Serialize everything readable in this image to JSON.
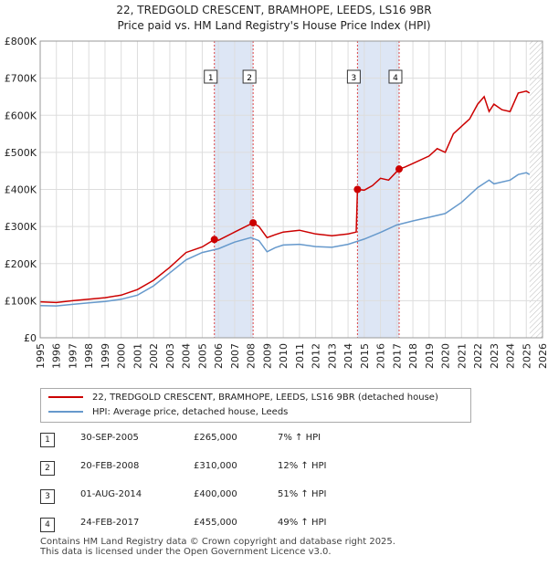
{
  "colors": {
    "property": "#cc0000",
    "hpi": "#6699cc",
    "band": "#dde6f5",
    "grid": "#dddddd"
  },
  "chart_data": {
    "type": "line",
    "title": "22, TREDGOLD CRESCENT, BRAMHOPE, LEEDS, LS16 9BR",
    "subtitle": "Price paid vs. HM Land Registry's House Price Index (HPI)",
    "xlim": [
      1995,
      2026
    ],
    "ylim": [
      0,
      800000
    ],
    "y_ticks": [
      {
        "value": 0,
        "label": "£0"
      },
      {
        "value": 100000,
        "label": "£100K"
      },
      {
        "value": 200000,
        "label": "£200K"
      },
      {
        "value": 300000,
        "label": "£300K"
      },
      {
        "value": 400000,
        "label": "£400K"
      },
      {
        "value": 500000,
        "label": "£500K"
      },
      {
        "value": 600000,
        "label": "£600K"
      },
      {
        "value": 700000,
        "label": "£700K"
      },
      {
        "value": 800000,
        "label": "£800K"
      }
    ],
    "x_ticks": [
      "1995",
      "1996",
      "1997",
      "1998",
      "1999",
      "2000",
      "2001",
      "2002",
      "2003",
      "2004",
      "2005",
      "2006",
      "2007",
      "2008",
      "2009",
      "2010",
      "2011",
      "2012",
      "2013",
      "2014",
      "2015",
      "2016",
      "2017",
      "2018",
      "2019",
      "2020",
      "2021",
      "2022",
      "2023",
      "2024",
      "2025",
      "2026"
    ],
    "shaded_periods": [
      [
        2005.75,
        2008.14
      ],
      [
        2014.58,
        2017.15
      ]
    ],
    "hatched_from": 2025.2,
    "series": [
      {
        "name": "22, TREDGOLD CRESCENT, BRAMHOPE, LEEDS, LS16 9BR (detached house)",
        "color": "#cc0000",
        "points": [
          [
            1995,
            97000
          ],
          [
            1996,
            95000
          ],
          [
            1997,
            100000
          ],
          [
            1998,
            104000
          ],
          [
            1999,
            108000
          ],
          [
            2000,
            115000
          ],
          [
            2001,
            130000
          ],
          [
            2002,
            155000
          ],
          [
            2003,
            190000
          ],
          [
            2004,
            230000
          ],
          [
            2005,
            245000
          ],
          [
            2005.75,
            265000
          ],
          [
            2006,
            263000
          ],
          [
            2007,
            285000
          ],
          [
            2008.14,
            310000
          ],
          [
            2008.5,
            300000
          ],
          [
            2009,
            270000
          ],
          [
            2009.5,
            278000
          ],
          [
            2010,
            285000
          ],
          [
            2011,
            290000
          ],
          [
            2012,
            280000
          ],
          [
            2013,
            275000
          ],
          [
            2014,
            280000
          ],
          [
            2014.5,
            285000
          ],
          [
            2014.58,
            400000
          ],
          [
            2015,
            398000
          ],
          [
            2015.5,
            410000
          ],
          [
            2016,
            430000
          ],
          [
            2016.5,
            425000
          ],
          [
            2017.15,
            455000
          ],
          [
            2017.5,
            460000
          ],
          [
            2018,
            470000
          ],
          [
            2019,
            490000
          ],
          [
            2019.5,
            510000
          ],
          [
            2020,
            500000
          ],
          [
            2020.5,
            550000
          ],
          [
            2021,
            570000
          ],
          [
            2021.5,
            590000
          ],
          [
            2022,
            630000
          ],
          [
            2022.4,
            650000
          ],
          [
            2022.7,
            610000
          ],
          [
            2023,
            630000
          ],
          [
            2023.5,
            615000
          ],
          [
            2024,
            610000
          ],
          [
            2024.5,
            660000
          ],
          [
            2025,
            665000
          ],
          [
            2025.2,
            660000
          ]
        ]
      },
      {
        "name": "HPI: Average price, detached house, Leeds",
        "color": "#6699cc",
        "points": [
          [
            1995,
            87000
          ],
          [
            1996,
            86000
          ],
          [
            1997,
            90000
          ],
          [
            1998,
            94000
          ],
          [
            1999,
            98000
          ],
          [
            2000,
            104000
          ],
          [
            2001,
            115000
          ],
          [
            2002,
            140000
          ],
          [
            2003,
            175000
          ],
          [
            2004,
            210000
          ],
          [
            2005,
            230000
          ],
          [
            2006,
            240000
          ],
          [
            2007,
            258000
          ],
          [
            2008,
            270000
          ],
          [
            2008.5,
            262000
          ],
          [
            2009,
            232000
          ],
          [
            2009.5,
            243000
          ],
          [
            2010,
            250000
          ],
          [
            2011,
            252000
          ],
          [
            2012,
            246000
          ],
          [
            2013,
            244000
          ],
          [
            2014,
            252000
          ],
          [
            2015,
            266000
          ],
          [
            2016,
            284000
          ],
          [
            2017,
            304000
          ],
          [
            2018,
            315000
          ],
          [
            2019,
            325000
          ],
          [
            2020,
            335000
          ],
          [
            2021,
            365000
          ],
          [
            2022,
            405000
          ],
          [
            2022.7,
            425000
          ],
          [
            2023,
            415000
          ],
          [
            2024,
            425000
          ],
          [
            2024.5,
            440000
          ],
          [
            2025,
            445000
          ],
          [
            2025.2,
            440000
          ]
        ]
      }
    ],
    "sales": [
      {
        "num": "1",
        "date": "30-SEP-2005",
        "price": "£265,000",
        "hpi": "7% ↑ HPI",
        "x": 2005.75,
        "y": 265000
      },
      {
        "num": "2",
        "date": "20-FEB-2008",
        "price": "£310,000",
        "hpi": "12% ↑ HPI",
        "x": 2008.14,
        "y": 310000
      },
      {
        "num": "3",
        "date": "01-AUG-2014",
        "price": "£400,000",
        "hpi": "51% ↑ HPI",
        "x": 2014.58,
        "y": 400000
      },
      {
        "num": "4",
        "date": "24-FEB-2017",
        "price": "£455,000",
        "hpi": "49% ↑ HPI",
        "x": 2017.15,
        "y": 455000
      }
    ],
    "footer": [
      "Contains HM Land Registry data © Crown copyright and database right 2025.",
      "This data is licensed under the Open Government Licence v3.0."
    ]
  }
}
